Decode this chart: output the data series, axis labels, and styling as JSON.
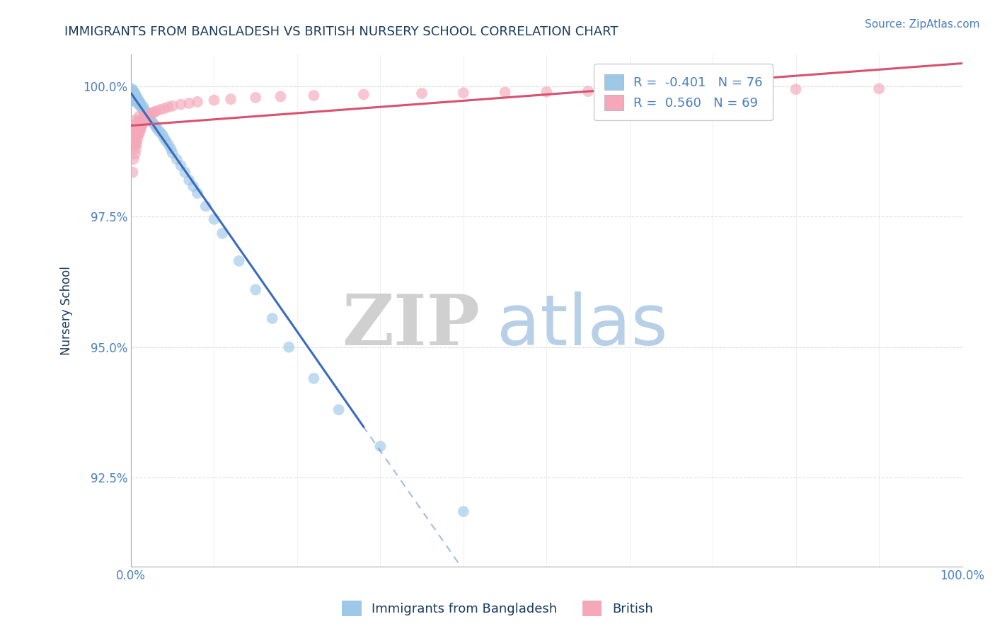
{
  "title": "IMMIGRANTS FROM BANGLADESH VS BRITISH NURSERY SCHOOL CORRELATION CHART",
  "source_text": "Source: ZipAtlas.com",
  "xlabel": "",
  "ylabel": "Nursery School",
  "legend_label_1": "Immigrants from Bangladesh",
  "legend_label_2": "British",
  "r1": -0.401,
  "n1": 76,
  "r2": 0.56,
  "n2": 69,
  "color_blue": "#9ec8e8",
  "color_pink": "#f4a8ba",
  "color_blue_line": "#3a6abf",
  "color_pink_line": "#d95070",
  "title_color": "#1a3a5c",
  "source_color": "#4a7fbf",
  "axis_label_color": "#1a3a5c",
  "tick_color": "#4a7fbf",
  "grid_color": "#c8c8c8",
  "xlim": [
    0.0,
    1.0
  ],
  "ylim": [
    0.908,
    1.006
  ],
  "yticks": [
    0.925,
    0.95,
    0.975,
    1.0
  ],
  "ytick_labels": [
    "92.5%",
    "95.0%",
    "97.5%",
    "100.0%"
  ],
  "xtick_labels": [
    "0.0%",
    "100.0%"
  ],
  "blue_x": [
    0.001,
    0.001,
    0.001,
    0.001,
    0.001,
    0.002,
    0.002,
    0.002,
    0.002,
    0.002,
    0.003,
    0.003,
    0.003,
    0.003,
    0.004,
    0.004,
    0.004,
    0.004,
    0.005,
    0.005,
    0.005,
    0.006,
    0.006,
    0.006,
    0.007,
    0.007,
    0.007,
    0.008,
    0.008,
    0.009,
    0.009,
    0.01,
    0.01,
    0.011,
    0.011,
    0.012,
    0.013,
    0.014,
    0.015,
    0.015,
    0.016,
    0.017,
    0.018,
    0.019,
    0.02,
    0.02,
    0.022,
    0.024,
    0.025,
    0.028,
    0.03,
    0.032,
    0.035,
    0.038,
    0.04,
    0.042,
    0.045,
    0.048,
    0.05,
    0.055,
    0.06,
    0.065,
    0.07,
    0.075,
    0.08,
    0.09,
    0.1,
    0.11,
    0.13,
    0.15,
    0.17,
    0.19,
    0.22,
    0.25,
    0.3,
    0.4
  ],
  "blue_y": [
    0.9995,
    0.999,
    0.9985,
    0.998,
    0.9975,
    0.9992,
    0.9988,
    0.9983,
    0.9978,
    0.9972,
    0.999,
    0.9985,
    0.998,
    0.9975,
    0.9988,
    0.9982,
    0.9977,
    0.9972,
    0.9985,
    0.998,
    0.9975,
    0.9982,
    0.9977,
    0.9972,
    0.9979,
    0.9974,
    0.9969,
    0.9976,
    0.997,
    0.9972,
    0.9967,
    0.997,
    0.9965,
    0.9968,
    0.9962,
    0.9965,
    0.996,
    0.9957,
    0.996,
    0.9954,
    0.9952,
    0.9949,
    0.9946,
    0.9943,
    0.995,
    0.9944,
    0.994,
    0.9935,
    0.9932,
    0.9927,
    0.9922,
    0.9917,
    0.9912,
    0.9907,
    0.99,
    0.9895,
    0.9888,
    0.988,
    0.9872,
    0.986,
    0.9848,
    0.9835,
    0.982,
    0.9808,
    0.9795,
    0.977,
    0.9745,
    0.9718,
    0.9665,
    0.961,
    0.9555,
    0.95,
    0.944,
    0.938,
    0.931,
    0.9185
  ],
  "pink_x": [
    0.002,
    0.003,
    0.003,
    0.004,
    0.004,
    0.004,
    0.005,
    0.005,
    0.005,
    0.005,
    0.005,
    0.006,
    0.006,
    0.006,
    0.006,
    0.007,
    0.007,
    0.007,
    0.007,
    0.008,
    0.008,
    0.008,
    0.009,
    0.009,
    0.01,
    0.01,
    0.01,
    0.01,
    0.011,
    0.011,
    0.012,
    0.012,
    0.013,
    0.013,
    0.014,
    0.015,
    0.015,
    0.016,
    0.017,
    0.018,
    0.018,
    0.02,
    0.02,
    0.022,
    0.025,
    0.028,
    0.03,
    0.035,
    0.04,
    0.045,
    0.05,
    0.06,
    0.07,
    0.08,
    0.1,
    0.12,
    0.15,
    0.18,
    0.22,
    0.28,
    0.35,
    0.4,
    0.45,
    0.5,
    0.55,
    0.6,
    0.7,
    0.8,
    0.9
  ],
  "pink_y": [
    0.9835,
    0.986,
    0.989,
    0.9885,
    0.99,
    0.9915,
    0.987,
    0.989,
    0.9905,
    0.992,
    0.9935,
    0.988,
    0.9895,
    0.991,
    0.9925,
    0.989,
    0.9905,
    0.9918,
    0.993,
    0.99,
    0.9912,
    0.9925,
    0.9908,
    0.9918,
    0.991,
    0.9922,
    0.9932,
    0.9942,
    0.9915,
    0.9928,
    0.992,
    0.993,
    0.9925,
    0.9935,
    0.9928,
    0.993,
    0.994,
    0.9935,
    0.9938,
    0.994,
    0.9942,
    0.9942,
    0.9945,
    0.9945,
    0.9948,
    0.995,
    0.9952,
    0.9955,
    0.9957,
    0.996,
    0.9962,
    0.9965,
    0.9967,
    0.997,
    0.9973,
    0.9975,
    0.9978,
    0.998,
    0.9982,
    0.9984,
    0.9986,
    0.9987,
    0.9988,
    0.9989,
    0.999,
    0.9991,
    0.9992,
    0.9994,
    0.9995
  ],
  "watermark_zip": "ZIP",
  "watermark_atlas": "atlas",
  "watermark_color_zip": "#d0d0d0",
  "watermark_color_atlas": "#b8cfe8",
  "background_color": "#ffffff"
}
